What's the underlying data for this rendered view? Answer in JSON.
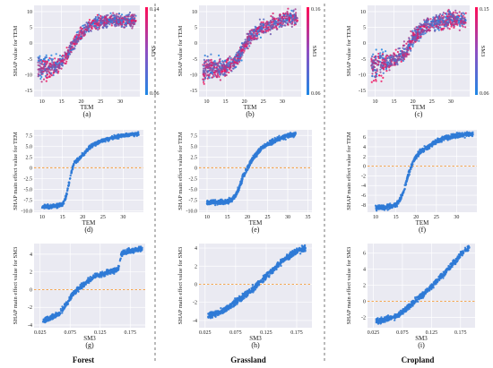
{
  "landcovers": [
    "Forest",
    "Grassland",
    "Cropland"
  ],
  "chart_data": [
    {
      "id": "a",
      "type": "scatter",
      "letter": "(a)",
      "xlabel": "TEM",
      "ylabel": "SHAP value for TEM",
      "xlim": [
        8,
        35
      ],
      "ylim": [
        -17,
        12
      ],
      "xticks": [
        10,
        15,
        20,
        25,
        30
      ],
      "yticks": [
        -15,
        -10,
        -5,
        0,
        5,
        10
      ],
      "grid": true,
      "colorbar": {
        "label": "SM3",
        "min": 0.06,
        "max": 0.14,
        "low_color": "#1e88e5",
        "high_color": "#ff0d57"
      },
      "curve": {
        "x": [
          9,
          11,
          13,
          14,
          15,
          16,
          17,
          18,
          19,
          20,
          21,
          22,
          24,
          26,
          28,
          30,
          32,
          34
        ],
        "y": [
          -8,
          -8,
          -7.5,
          -7,
          -6,
          -4.5,
          -2.5,
          -0.5,
          1.5,
          3,
          4.5,
          5.5,
          6.5,
          7,
          7.3,
          7.3,
          7.2,
          7
        ]
      },
      "spread": 1.4
    },
    {
      "id": "b",
      "type": "scatter",
      "letter": "(b)",
      "xlabel": "TEM",
      "ylabel": "SHAP value for TEM",
      "xlim": [
        8,
        35
      ],
      "ylim": [
        -17,
        12
      ],
      "xticks": [
        10,
        15,
        20,
        25,
        30
      ],
      "yticks": [
        -15,
        -10,
        -5,
        0,
        5,
        10
      ],
      "grid": true,
      "colorbar": {
        "label": "SM3",
        "min": 0.06,
        "max": 0.16,
        "low_color": "#1e88e5",
        "high_color": "#ff0d57"
      },
      "curve": {
        "x": [
          9,
          11,
          13,
          15,
          17,
          18,
          19,
          20,
          21,
          22,
          23,
          24,
          26,
          28,
          30,
          32,
          34
        ],
        "y": [
          -8,
          -8,
          -8,
          -7.5,
          -6.5,
          -5,
          -3,
          -1,
          1,
          2.5,
          3.5,
          4.5,
          5.5,
          6.5,
          7.5,
          8,
          8
        ]
      },
      "spread": 1.6
    },
    {
      "id": "c",
      "type": "scatter",
      "letter": "(c)",
      "xlabel": "TEM",
      "ylabel": "SHAP value for TEM",
      "xlim": [
        8,
        35
      ],
      "ylim": [
        -17,
        12
      ],
      "xticks": [
        10,
        15,
        20,
        25,
        30
      ],
      "yticks": [
        -15,
        -10,
        -5,
        0,
        5,
        10
      ],
      "grid": true,
      "colorbar": {
        "label": "SM3",
        "min": 0.06,
        "max": 0.15,
        "low_color": "#1e88e5",
        "high_color": "#ff0d57"
      },
      "curve": {
        "x": [
          9,
          11,
          13,
          15,
          17,
          18,
          19,
          20,
          21,
          22,
          23,
          24,
          26,
          28,
          30,
          32,
          34
        ],
        "y": [
          -7,
          -7,
          -6.5,
          -5.5,
          -4,
          -2.5,
          -0.5,
          1.5,
          3,
          4,
          5,
          5.5,
          6.5,
          7,
          7.5,
          7.5,
          7.5
        ]
      },
      "spread": 1.8
    },
    {
      "id": "d",
      "type": "scatter",
      "letter": "(d)",
      "xlabel": "TEM",
      "ylabel": "SHAP main effect value for TEM",
      "xlim": [
        8,
        35
      ],
      "ylim": [
        -10.3,
        8.8
      ],
      "xticks": [
        10,
        15,
        20,
        25,
        30
      ],
      "yticks": [
        -10,
        -7.5,
        -5,
        -2.5,
        0,
        2.5,
        5,
        7.5
      ],
      "ytick_labels": [
        "-10.0",
        "-7.5",
        "-5.0",
        "-2.5",
        "0",
        "2.5",
        "5.0",
        "7.5"
      ],
      "grid": true,
      "reference_line": 0,
      "curve": {
        "x": [
          10,
          12,
          14,
          15,
          15.8,
          16.3,
          17,
          17.5,
          18,
          19,
          20,
          21,
          22,
          24,
          26,
          28,
          30,
          32,
          34
        ],
        "y": [
          -9,
          -9,
          -8.8,
          -8.5,
          -7,
          -5,
          -2,
          0,
          1.2,
          2,
          3,
          4,
          5,
          6,
          6.6,
          7,
          7.5,
          7.7,
          7.8
        ]
      },
      "spread": 0.3
    },
    {
      "id": "e",
      "type": "scatter",
      "letter": "(e)",
      "xlabel": "TEM",
      "ylabel": "SHAP main effect value for TEM",
      "xlim": [
        8,
        36
      ],
      "ylim": [
        -10.3,
        8.8
      ],
      "xticks": [
        10,
        15,
        20,
        25,
        30,
        35
      ],
      "yticks": [
        -10,
        -7.5,
        -5,
        -2.5,
        0,
        2.5,
        5,
        7.5
      ],
      "ytick_labels": [
        "-10.0",
        "-7.5",
        "-5.0",
        "-2.5",
        "0",
        "2.5",
        "5.0",
        "7.5"
      ],
      "grid": true,
      "reference_line": 0,
      "curve": {
        "x": [
          10,
          12,
          14,
          16,
          17,
          18,
          19,
          20,
          21,
          22,
          23,
          24,
          26,
          28,
          30,
          32
        ],
        "y": [
          -8,
          -8,
          -8,
          -7.5,
          -6.5,
          -4.5,
          -2,
          0,
          1.5,
          3,
          4,
          5,
          6,
          6.8,
          7.4,
          7.8
        ]
      },
      "spread": 0.4
    },
    {
      "id": "f",
      "type": "scatter",
      "letter": "(f)",
      "xlabel": "TEM",
      "ylabel": "SHAP main effect value for TEM",
      "xlim": [
        8,
        35
      ],
      "ylim": [
        -9.5,
        7.5
      ],
      "xticks": [
        10,
        15,
        20,
        25,
        30
      ],
      "yticks": [
        -8,
        -6,
        -4,
        -2,
        0,
        2,
        4,
        6
      ],
      "grid": true,
      "reference_line": 0,
      "curve": {
        "x": [
          10,
          12,
          14,
          15,
          16,
          17,
          18,
          19,
          20,
          21,
          22,
          24,
          26,
          28,
          30,
          32,
          34
        ],
        "y": [
          -8.5,
          -8.5,
          -8.3,
          -8,
          -7,
          -5,
          -2,
          0.5,
          2,
          3,
          3.5,
          4.5,
          5.5,
          6,
          6.3,
          6.5,
          6.6
        ]
      },
      "spread": 0.35
    },
    {
      "id": "g",
      "type": "scatter",
      "letter": "(g)",
      "xlabel": "SM3",
      "ylabel": "SHAP main effect value for SM3",
      "xlim": [
        0.015,
        0.2
      ],
      "ylim": [
        -4.3,
        5.2
      ],
      "xticks": [
        0.025,
        0.075,
        0.125,
        0.175
      ],
      "xtick_labels": [
        "0.025",
        "0.075",
        "0.125",
        "0.175"
      ],
      "yticks": [
        -4,
        -2,
        0,
        2,
        4
      ],
      "grid": true,
      "reference_line": 0,
      "curve": {
        "x": [
          0.03,
          0.04,
          0.05,
          0.06,
          0.07,
          0.08,
          0.09,
          0.1,
          0.11,
          0.12,
          0.13,
          0.14,
          0.15,
          0.155,
          0.16,
          0.17,
          0.185,
          0.195
        ],
        "y": [
          -3.5,
          -3.3,
          -3,
          -2.5,
          -1.5,
          -0.5,
          0.2,
          0.7,
          1.2,
          1.6,
          1.8,
          2,
          2.2,
          2.3,
          4,
          4.3,
          4.5,
          4.6
        ]
      },
      "spread": 0.2
    },
    {
      "id": "h",
      "type": "scatter",
      "letter": "(h)",
      "xlabel": "SM3",
      "ylabel": "SHAP main effect value for SM3",
      "xlim": [
        0.015,
        0.2
      ],
      "ylim": [
        -4.8,
        4.5
      ],
      "xticks": [
        0.025,
        0.075,
        0.125,
        0.175
      ],
      "xtick_labels": [
        "0.025",
        "0.075",
        "0.125",
        "0.175"
      ],
      "yticks": [
        -4,
        -2,
        0,
        2,
        4
      ],
      "grid": true,
      "reference_line": 0,
      "curve": {
        "x": [
          0.03,
          0.045,
          0.06,
          0.07,
          0.08,
          0.09,
          0.1,
          0.11,
          0.12,
          0.13,
          0.14,
          0.15,
          0.16,
          0.17,
          0.18,
          0.19
        ],
        "y": [
          -3.5,
          -3.2,
          -2.7,
          -2.2,
          -1.7,
          -1.2,
          -0.7,
          -0.1,
          0.6,
          1.2,
          1.8,
          2.5,
          3,
          3.5,
          3.8,
          4
        ]
      },
      "spread": 0.25
    },
    {
      "id": "i",
      "type": "scatter",
      "letter": "(i)",
      "xlabel": "SM3",
      "ylabel": "SHAP main effect value for SM3",
      "xlim": [
        0.015,
        0.2
      ],
      "ylim": [
        -3.3,
        7.2
      ],
      "xticks": [
        0.025,
        0.075,
        0.125,
        0.175
      ],
      "xtick_labels": [
        "0.025",
        "0.075",
        "0.125",
        "0.175"
      ],
      "yticks": [
        -2,
        0,
        2,
        4,
        6
      ],
      "grid": true,
      "reference_line": 0,
      "curve": {
        "x": [
          0.03,
          0.045,
          0.06,
          0.07,
          0.08,
          0.09,
          0.1,
          0.11,
          0.12,
          0.13,
          0.14,
          0.15,
          0.16,
          0.17,
          0.18,
          0.19
        ],
        "y": [
          -2.5,
          -2.3,
          -2,
          -1.6,
          -1,
          -0.4,
          0.2,
          0.8,
          1.5,
          2.2,
          3,
          3.7,
          4.5,
          5.3,
          6.2,
          6.7
        ]
      },
      "spread": 0.25
    }
  ]
}
